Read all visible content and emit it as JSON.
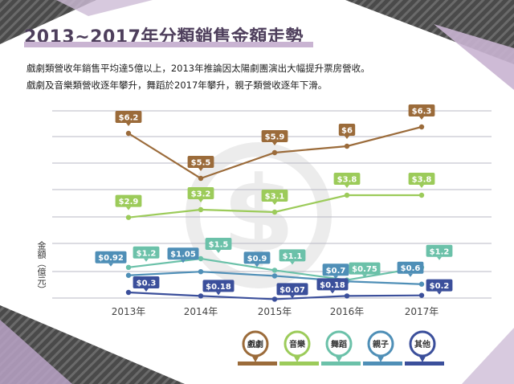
{
  "page": {
    "title": "2013~2017年分類銷售金額走勢",
    "desc_line1": "戲劇類營收年銷售平均達5億以上，2013年推論因太陽劇團演出大幅提升票房營收。",
    "desc_line2": "戲劇及音樂類營收逐年攀升，舞蹈於2017年攀升，親子類營收逐年下滑。"
  },
  "colors": {
    "theater": "#9b6b3a",
    "music": "#9ccb5a",
    "dance": "#6bc1a9",
    "kids": "#4f8fb7",
    "other": "#3b4f9b",
    "title": "#4e3f5c",
    "accent": "#c9b4d2"
  },
  "chart_data": {
    "type": "line",
    "categories": [
      "2013年",
      "2014年",
      "2015年",
      "2016年",
      "2017年"
    ],
    "ylabel": "金額（億元）",
    "grid": true,
    "legend_position": "bottom-right",
    "series": [
      {
        "name": "戲劇",
        "key": "theater",
        "values": [
          6.2,
          5.5,
          5.9,
          6,
          6.3
        ],
        "labels": [
          "$6.2",
          "$5.5",
          "$5.9",
          "$6",
          "$6.3"
        ]
      },
      {
        "name": "音樂",
        "key": "music",
        "values": [
          2.9,
          3.2,
          3.1,
          3.8,
          3.8
        ],
        "labels": [
          "$2.9",
          "$3.2",
          "$3.1",
          "$3.8",
          "$3.8"
        ]
      },
      {
        "name": "舞蹈",
        "key": "dance",
        "values": [
          1.2,
          1.5,
          1.1,
          0.75,
          1.2
        ],
        "labels": [
          "$1.2",
          "$1.5",
          "$1.1",
          "$0.75",
          "$1.2"
        ]
      },
      {
        "name": "親子",
        "key": "kids",
        "values": [
          0.92,
          1.05,
          0.9,
          0.7,
          0.6
        ],
        "labels": [
          "$0.92",
          "$1.05",
          "$0.9",
          "$0.7",
          "$0.6"
        ]
      },
      {
        "name": "其他",
        "key": "other",
        "values": [
          0.3,
          0.18,
          0.07,
          0.18,
          0.2
        ],
        "labels": [
          "$0.3",
          "$0.18",
          "$0.07",
          "$0.18",
          "$0.2"
        ]
      }
    ]
  }
}
